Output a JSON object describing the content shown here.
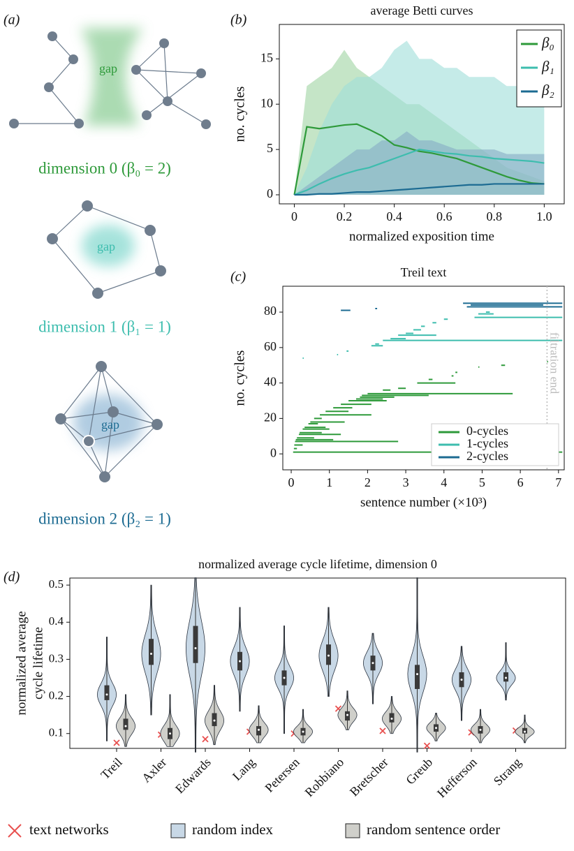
{
  "panel_labels": [
    "(a)",
    "(b)",
    "(c)",
    "(d)"
  ],
  "diagram": {
    "panels": [
      {
        "gap": "gap",
        "label": "dimension 0 (β₀ = 2)",
        "color": "#2e9a3a"
      },
      {
        "gap": "gap",
        "label": "dimension 1 (β₁ = 1)",
        "color": "#3dbdae"
      },
      {
        "gap": "gap",
        "label": "dimension 2 (β₂ = 1)",
        "color": "#1c6b92"
      }
    ]
  },
  "chart_data": [
    {
      "type": "line",
      "title": "average Betti curves",
      "xlabel": "normalized exposition time",
      "ylabel": "no. cycles",
      "x": [
        0,
        0.05,
        0.1,
        0.15,
        0.2,
        0.25,
        0.3,
        0.35,
        0.4,
        0.45,
        0.5,
        0.55,
        0.6,
        0.65,
        0.7,
        0.75,
        0.8,
        0.85,
        0.9,
        0.95,
        1
      ],
      "xlim": [
        -0.06,
        1.08
      ],
      "ylim": [
        -1,
        18.8
      ],
      "xticks": [
        0,
        0.2,
        0.4,
        0.6,
        0.8,
        {
          "value": 1,
          "label": "1.0"
        }
      ],
      "yticks": [
        0,
        5,
        10,
        15
      ],
      "legend": "upper right",
      "series": [
        {
          "name": "β₀",
          "color": "#2e9a3a",
          "band_color": "#9fd4a2",
          "values": [
            0,
            7.5,
            7.3,
            7.5,
            7.7,
            7.8,
            7.2,
            6.5,
            5.5,
            5.2,
            4.8,
            4.6,
            4.3,
            4.0,
            3.5,
            3.0,
            2.5,
            2.0,
            1.6,
            1.3,
            1.2
          ],
          "band_upper": [
            0,
            12,
            13,
            14,
            16,
            14,
            13,
            12,
            11,
            10,
            10,
            9,
            8,
            7,
            6,
            5,
            4,
            3,
            2.5,
            2,
            1.5
          ]
        },
        {
          "name": "β₁",
          "color": "#3dbdae",
          "band_color": "#9fded9",
          "values": [
            0,
            0.5,
            1.2,
            1.8,
            2.3,
            2.7,
            3.0,
            3.5,
            4.0,
            4.5,
            5.0,
            4.8,
            4.6,
            4.5,
            4.3,
            4.2,
            4.0,
            3.9,
            3.8,
            3.7,
            3.5
          ],
          "band_upper": [
            0,
            3,
            7,
            10,
            12,
            13,
            13,
            14,
            16,
            17,
            15,
            15,
            14,
            14,
            13,
            13,
            13,
            12,
            12,
            11,
            10
          ]
        },
        {
          "name": "β₂",
          "color": "#1c6b92",
          "band_color": "#86acc4",
          "values": [
            0,
            0,
            0.1,
            0.1,
            0.2,
            0.3,
            0.3,
            0.4,
            0.5,
            0.6,
            0.7,
            0.8,
            0.9,
            1.0,
            1.1,
            1.1,
            1.2,
            1.2,
            1.2,
            1.2,
            1.2
          ],
          "band_upper": [
            0,
            1,
            2,
            3,
            4,
            5,
            5,
            6,
            6,
            7,
            6,
            6,
            5.5,
            5,
            5,
            5,
            5,
            4.5,
            4.5,
            4.5,
            4.5
          ]
        }
      ]
    },
    {
      "type": "barcode",
      "title": "Treil text",
      "xlabel": "sentence number (×10³)",
      "ylabel": "no. cycles",
      "xlim": [
        -0.22,
        7.15
      ],
      "ylim": [
        -9,
        94.6
      ],
      "xticks": [
        0,
        1,
        2,
        3,
        4,
        5,
        6,
        7
      ],
      "yticks": [
        0,
        20,
        40,
        60,
        80
      ],
      "legend": "lower right",
      "annotation": {
        "text": "filtration end",
        "x": 6.7
      },
      "series": [
        {
          "name": "0-cycles",
          "color": "#2e9a3a",
          "y": [
            1,
            3,
            5,
            7,
            8,
            9,
            11,
            12,
            14,
            15,
            17,
            18,
            20,
            22,
            24,
            26,
            28,
            30,
            31,
            32,
            33,
            34,
            36,
            37,
            40,
            42,
            44,
            46,
            49,
            50,
            52
          ],
          "start": [
            0.05,
            0.07,
            0.08,
            0.1,
            0.12,
            0.15,
            0.2,
            0.22,
            0.3,
            0.35,
            0.45,
            0.5,
            0.6,
            0.75,
            0.9,
            1.1,
            1.3,
            1.5,
            1.7,
            1.8,
            1.85,
            2.0,
            2.4,
            2.8,
            3.3,
            3.6,
            4.2,
            4.3,
            4.9,
            5.5,
            6.7
          ],
          "end": [
            7.1,
            0.15,
            0.3,
            2.8,
            1.1,
            0.6,
            1.3,
            0.8,
            1.0,
            0.9,
            0.7,
            1.4,
            0.8,
            2.1,
            1.5,
            1.6,
            2.1,
            2.5,
            2.4,
            2.7,
            3.6,
            5.8,
            2.6,
            3.0,
            4.3,
            3.7,
            4.25,
            4.35,
            4.92,
            5.6,
            6.72
          ]
        },
        {
          "name": "1-cycles",
          "color": "#3dbdae",
          "y": [
            54,
            56,
            58,
            61,
            62,
            64,
            65,
            67,
            68,
            70,
            72,
            74,
            76,
            77,
            79,
            80
          ],
          "start": [
            0.3,
            1.2,
            1.45,
            2.1,
            2.2,
            2.4,
            2.6,
            2.8,
            3.0,
            3.2,
            3.4,
            3.7,
            4.0,
            4.8,
            4.9,
            5.1
          ],
          "end": [
            0.32,
            1.22,
            1.5,
            2.4,
            2.3,
            7.1,
            3.0,
            3.8,
            3.2,
            3.4,
            3.5,
            3.8,
            4.1,
            7.1,
            5.3,
            5.2
          ]
        },
        {
          "name": "2-cycles",
          "color": "#1c6b92",
          "y": [
            81,
            82,
            83,
            84,
            85,
            86
          ],
          "start": [
            1.3,
            2.2,
            4.6,
            4.7,
            4.5,
            6.7
          ],
          "end": [
            1.55,
            2.25,
            7.1,
            6.6,
            7.1,
            6.72
          ]
        }
      ]
    },
    {
      "type": "violin",
      "title": "normalized average cycle lifetime, dimension 0",
      "ylabel": [
        "normalized average",
        "cycle lifetime"
      ],
      "categories": [
        "Treil",
        "Axler",
        "Edwards",
        "Lang",
        "Petersen",
        "Robbiano",
        "Bretscher",
        "Greub",
        "Hefferson",
        "Strang"
      ],
      "ylim": [
        0.06,
        0.519
      ],
      "yticks": [
        0.1,
        0.2,
        0.3,
        0.4,
        0.5
      ],
      "legend": "bottom",
      "series": [
        {
          "name": "text networks",
          "color": "#e8504f",
          "marker": "x",
          "values": [
            0.075,
            0.097,
            0.085,
            0.105,
            0.1,
            0.167,
            0.107,
            0.067,
            0.103,
            0.108
          ]
        },
        {
          "name": "random index",
          "color": "#c8d8e6",
          "min": [
            0.08,
            0.15,
            0.05,
            0.16,
            0.1,
            0.2,
            0.18,
            0.05,
            0.135,
            0.19
          ],
          "q1": [
            0.19,
            0.285,
            0.29,
            0.27,
            0.23,
            0.285,
            0.27,
            0.22,
            0.225,
            0.24
          ],
          "median": [
            0.205,
            0.315,
            0.33,
            0.295,
            0.25,
            0.31,
            0.29,
            0.26,
            0.245,
            0.25
          ],
          "q3": [
            0.23,
            0.355,
            0.39,
            0.32,
            0.27,
            0.34,
            0.31,
            0.285,
            0.265,
            0.265
          ],
          "max": [
            0.36,
            0.5,
            0.52,
            0.44,
            0.39,
            0.44,
            0.37,
            0.52,
            0.335,
            0.345
          ]
        },
        {
          "name": "random sentence order",
          "color": "#cfcfca",
          "min": [
            0.065,
            0.065,
            0.07,
            0.075,
            0.075,
            0.11,
            0.1,
            0.08,
            0.075,
            0.075
          ],
          "q1": [
            0.11,
            0.085,
            0.12,
            0.095,
            0.095,
            0.135,
            0.13,
            0.105,
            0.1,
            0.1
          ],
          "median": [
            0.12,
            0.1,
            0.135,
            0.11,
            0.105,
            0.15,
            0.14,
            0.115,
            0.11,
            0.105
          ],
          "q3": [
            0.14,
            0.115,
            0.155,
            0.12,
            0.115,
            0.16,
            0.155,
            0.125,
            0.12,
            0.115
          ],
          "max": [
            0.205,
            0.205,
            0.23,
            0.175,
            0.165,
            0.215,
            0.2,
            0.155,
            0.165,
            0.15
          ]
        }
      ]
    }
  ]
}
